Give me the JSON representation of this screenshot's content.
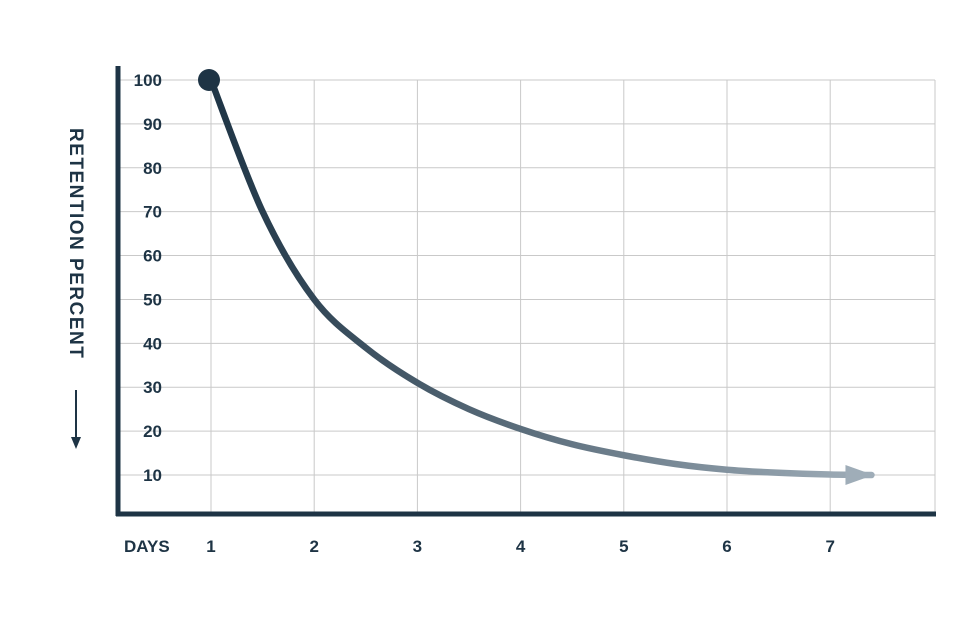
{
  "chart_data": {
    "type": "line",
    "title": "",
    "xlabel": "DAYS",
    "ylabel": "RETENTION PERCENT",
    "x": [
      1,
      2,
      3,
      4,
      5,
      6,
      7
    ],
    "ylim": [
      10,
      100
    ],
    "y_ticks": [
      100,
      90,
      80,
      70,
      60,
      50,
      40,
      30,
      20,
      10
    ],
    "series": [
      {
        "name": "",
        "x": [
          1,
          1.5,
          2,
          2.5,
          3,
          3.5,
          4,
          4.5,
          5,
          5.5,
          6,
          6.5,
          7,
          7.4
        ],
        "values": [
          100,
          70,
          50,
          39,
          31,
          25,
          20.5,
          17,
          14.5,
          12.5,
          11.2,
          10.5,
          10.1,
          10
        ]
      }
    ],
    "grid": true,
    "colors": {
      "axis": "#1e3445",
      "grid": "#c9c9c9",
      "curve_start": "#1e3445",
      "curve_end": "#9fadb8"
    }
  }
}
